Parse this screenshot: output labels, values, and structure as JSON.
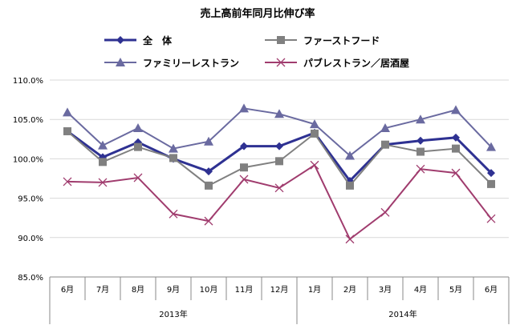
{
  "chart_data": {
    "type": "line",
    "title": "売上高前年同月比伸び率",
    "categories": [
      "6月",
      "7月",
      "8月",
      "9月",
      "10月",
      "11月",
      "12月",
      "1月",
      "2月",
      "3月",
      "4月",
      "5月",
      "6月"
    ],
    "year_groups": [
      {
        "label": "2013年",
        "span": 7
      },
      {
        "label": "2014年",
        "span": 6
      }
    ],
    "ylim": [
      85,
      110
    ],
    "yticks": [
      "85.0%",
      "90.0%",
      "95.0%",
      "100.0%",
      "105.0%",
      "110.0%"
    ],
    "grid": true,
    "legend": "top",
    "series": [
      {
        "name": "全　体",
        "color": "#2e3192",
        "marker": "diamond",
        "values": [
          103.5,
          100.2,
          102.1,
          100.0,
          98.4,
          101.6,
          101.6,
          103.3,
          97.2,
          101.8,
          102.3,
          102.7,
          98.2
        ]
      },
      {
        "name": "ファーストフード",
        "color": "#808080",
        "marker": "square",
        "values": [
          103.5,
          99.6,
          101.5,
          100.1,
          96.6,
          98.9,
          99.7,
          103.2,
          96.6,
          101.8,
          100.9,
          101.3,
          96.8
        ]
      },
      {
        "name": "ファミリーレストラン",
        "color": "#6a6aa0",
        "marker": "triangle",
        "values": [
          105.9,
          101.7,
          103.9,
          101.3,
          102.2,
          106.4,
          105.7,
          104.4,
          100.4,
          103.9,
          105.0,
          106.2,
          101.5
        ]
      },
      {
        "name": "パブレストラン／居酒屋",
        "color": "#a03c6e",
        "marker": "x",
        "values": [
          97.1,
          97.0,
          97.6,
          93.0,
          92.1,
          97.4,
          96.3,
          99.2,
          89.8,
          93.2,
          98.7,
          98.2,
          92.4
        ]
      }
    ]
  }
}
